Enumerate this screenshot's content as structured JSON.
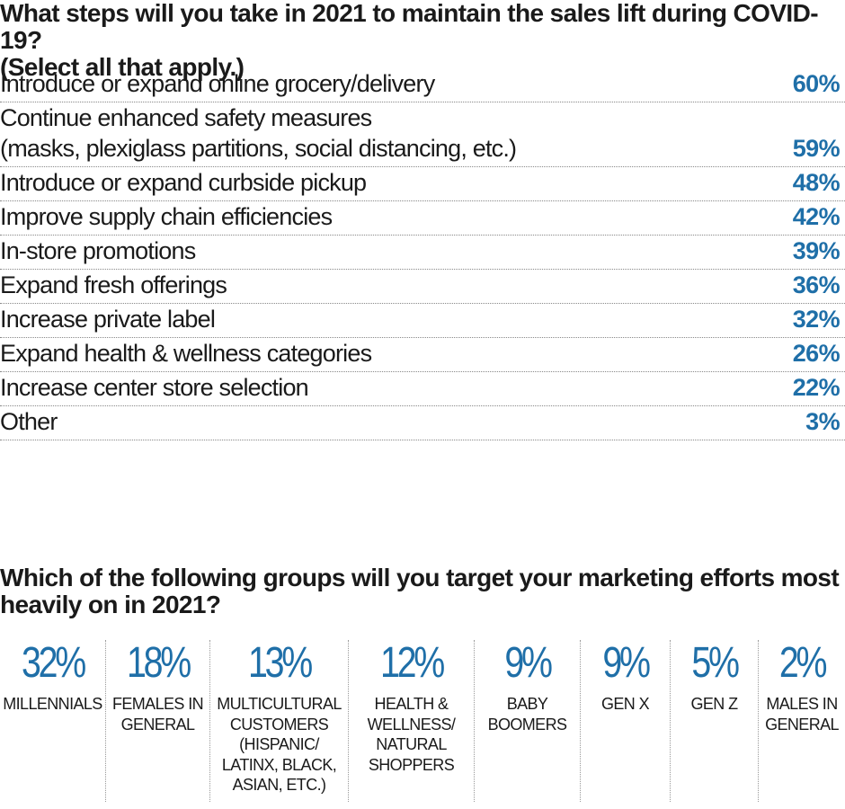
{
  "chart_data": [
    {
      "type": "table",
      "title": "What steps will you take in 2021 to maintain the sales lift during COVID-19? (Select all that apply.)",
      "categories": [
        "Introduce or expand online grocery/delivery",
        "Continue enhanced safety measures (masks, plexiglass partitions, social distancing, etc.)",
        "Introduce or expand curbside pickup",
        "Improve supply chain efficiencies",
        "In-store promotions",
        "Expand fresh offerings",
        "Increase private label",
        "Expand health & wellness categories",
        "Increase center store selection",
        "Other"
      ],
      "values": [
        60,
        59,
        48,
        42,
        39,
        36,
        32,
        26,
        22,
        3
      ]
    },
    {
      "type": "table",
      "title": "Which of the following groups will you target your marketing efforts most heavily on in 2021?",
      "categories": [
        "MILLENNIALS",
        "FEMALES IN GENERAL",
        "MULTICULTURAL CUSTOMERS (HISPANIC/ LATINX, BLACK, ASIAN, ETC.)",
        "HEALTH & WELLNESS/ NATURAL SHOPPERS",
        "BABY BOOMERS",
        "GEN X",
        "GEN Z",
        "MALES IN GENERAL"
      ],
      "values": [
        32,
        18,
        13,
        12,
        9,
        9,
        5,
        2
      ]
    }
  ],
  "q1": {
    "title_line1": "What steps will you take in 2021 to maintain the sales lift during COVID-19?",
    "title_line2": "(Select all that apply.)",
    "rows": [
      {
        "label": "Introduce or expand online grocery/delivery",
        "pct": "60%"
      },
      {
        "label": "Continue enhanced safety measures",
        "label2": "(masks, plexiglass partitions, social distancing, etc.)",
        "pct": "59%"
      },
      {
        "label": "Introduce or expand curbside pickup",
        "pct": "48%"
      },
      {
        "label": "Improve supply chain efficiencies",
        "pct": "42%"
      },
      {
        "label": "In-store promotions",
        "pct": "39%"
      },
      {
        "label": "Expand fresh offerings",
        "pct": "36%"
      },
      {
        "label": "Increase private label",
        "pct": "32%"
      },
      {
        "label": "Expand health & wellness categories",
        "pct": "26%"
      },
      {
        "label": "Increase center store selection",
        "pct": "22%"
      },
      {
        "label": "Other",
        "pct": "3%"
      }
    ]
  },
  "q2": {
    "title_line1": "Which of the following groups will you target your marketing efforts most",
    "title_line2": "heavily on in 2021?",
    "groups": [
      {
        "pct": "32%",
        "lines": [
          "MILLENNIALS"
        ]
      },
      {
        "pct": "18%",
        "lines": [
          "FEMALES IN",
          "GENERAL"
        ]
      },
      {
        "pct": "13%",
        "lines": [
          "MULTICULTURAL",
          "CUSTOMERS",
          "(HISPANIC/",
          "LATINX, BLACK,",
          "ASIAN, ETC.)"
        ]
      },
      {
        "pct": "12%",
        "lines": [
          "HEALTH &",
          "WELLNESS/",
          "NATURAL",
          "SHOPPERS"
        ]
      },
      {
        "pct": "9%",
        "lines": [
          "BABY",
          "BOOMERS"
        ]
      },
      {
        "pct": "9%",
        "lines": [
          "GEN X"
        ]
      },
      {
        "pct": "5%",
        "lines": [
          "GEN Z"
        ]
      },
      {
        "pct": "2%",
        "lines": [
          "MALES IN",
          "GENERAL"
        ]
      }
    ]
  },
  "colors": {
    "accent": "#1f6fa8",
    "text": "#1a1a1a",
    "rule": "#888888"
  }
}
